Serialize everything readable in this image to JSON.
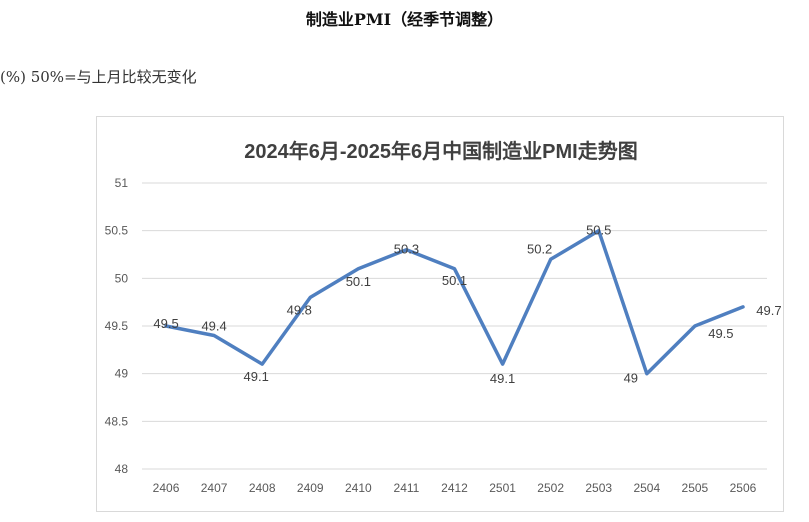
{
  "page": {
    "title": "制造业PMI（经季节调整）",
    "unit_note": "(%) 50%=与上月比较无变化"
  },
  "colors": {
    "series": "#4f7fc0",
    "grid": "#d9d9d9",
    "text": "#404040"
  },
  "chart_data": {
    "type": "line",
    "title": "2024年6月-2025年6月中国制造业PMI走势图",
    "xlabel": "",
    "ylabel": "",
    "categories": [
      "2406",
      "2407",
      "2408",
      "2409",
      "2410",
      "2411",
      "2412",
      "2501",
      "2502",
      "2503",
      "2504",
      "2505",
      "2506"
    ],
    "series": [
      {
        "values": [
          49.5,
          49.4,
          49.1,
          49.8,
          50.1,
          50.3,
          50.1,
          49.1,
          50.2,
          50.5,
          49.0,
          49.5,
          49.7
        ]
      }
    ],
    "data_labels": [
      "49.5",
      "49.4",
      "49.1",
      "49.8",
      "50.1",
      "50.3",
      "50.1",
      "49.1",
      "50.2",
      "50.5",
      "49",
      "49.5",
      "49.7"
    ],
    "ylim": [
      48,
      51
    ],
    "yticks": [
      48,
      48.5,
      49,
      49.5,
      50,
      50.5,
      51
    ],
    "ytick_labels": [
      "48",
      "48.5",
      "49",
      "49.5",
      "50",
      "50.5",
      "51"
    ],
    "grid": true,
    "legend": "none"
  }
}
